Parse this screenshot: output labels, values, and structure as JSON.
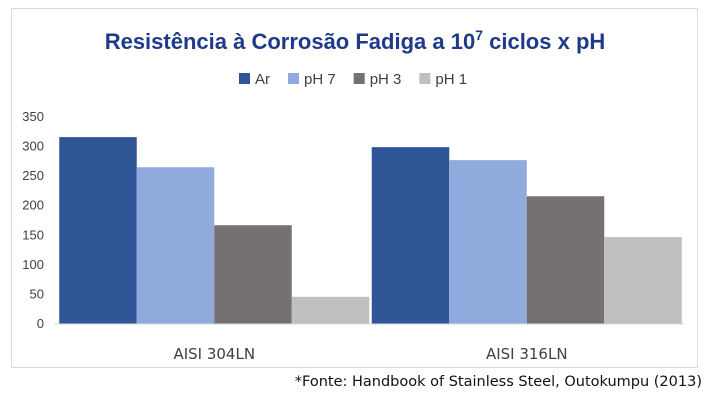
{
  "chart_data": {
    "type": "bar",
    "title": "Resistência à Corrosão Fadiga a 10",
    "title_superscript": "7",
    "title_suffix": " ciclos x pH",
    "categories": [
      "AISI 304LN",
      "AISI 316LN"
    ],
    "series": [
      {
        "name": "Ar",
        "values": [
          316,
          299
        ],
        "color": "#2f5597"
      },
      {
        "name": "pH 7",
        "values": [
          265,
          277
        ],
        "color": "#8faadc"
      },
      {
        "name": "pH 3",
        "values": [
          167,
          216
        ],
        "color": "#767171"
      },
      {
        "name": "pH 1",
        "values": [
          46,
          147
        ],
        "color": "#bfbfbf"
      }
    ],
    "xlabel": "",
    "ylabel": "",
    "ylim": [
      0,
      350
    ],
    "yticks": [
      0,
      50,
      100,
      150,
      200,
      250,
      300,
      350
    ],
    "grid": false,
    "legend_position": "top",
    "title_color": "#1f3a8a"
  },
  "source_note": "*Fonte: Handbook of Stainless Steel, Outokumpu (2013)"
}
